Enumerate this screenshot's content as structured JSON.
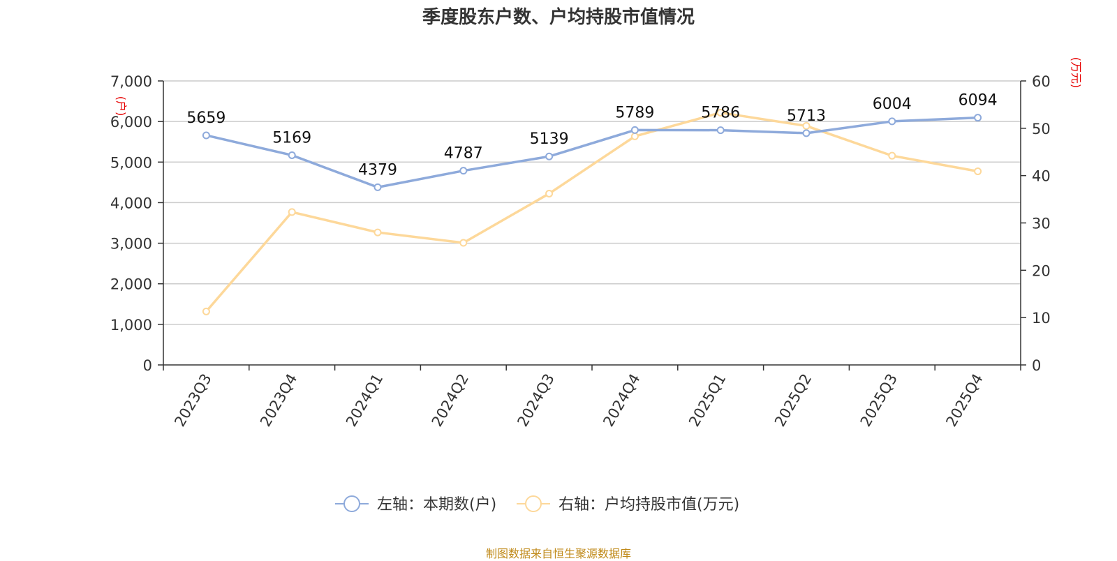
{
  "title": "季度股东户数、户均持股市值情况",
  "source": "制图数据来自恒生聚源数据库",
  "chart_data": {
    "type": "line",
    "categories": [
      "2023Q3",
      "2023Q4",
      "2024Q1",
      "2024Q2",
      "2024Q3",
      "2024Q4",
      "2025Q1",
      "2025Q2",
      "2025Q3",
      "2025Q4"
    ],
    "left_axis": {
      "unit": "(户)",
      "ylim": [
        0,
        7000
      ],
      "ticks": [
        0,
        1000,
        2000,
        3000,
        4000,
        5000,
        6000,
        7000
      ],
      "tick_labels": [
        "0",
        "1,000",
        "2,000",
        "3,000",
        "4,000",
        "5,000",
        "6,000",
        "7,000"
      ]
    },
    "right_axis": {
      "unit": "(万元)",
      "ylim": [
        0,
        60
      ],
      "ticks": [
        0,
        10,
        20,
        30,
        40,
        50,
        60
      ],
      "tick_labels": [
        "0",
        "10",
        "20",
        "30",
        "40",
        "50",
        "60"
      ]
    },
    "series": [
      {
        "name": "左轴：本期数(户)",
        "axis": "left",
        "color": "#8eaadb",
        "values": [
          5659,
          5169,
          4379,
          4787,
          5139,
          5789,
          5786,
          5713,
          6004,
          6094
        ],
        "labels": [
          "5659",
          "5169",
          "4379",
          "4787",
          "5139",
          "5789",
          "5786",
          "5713",
          "6004",
          "6094"
        ]
      },
      {
        "name": "右轴：户均持股市值(万元)",
        "axis": "right",
        "color": "#fdd89a",
        "values": [
          11.3,
          32.3,
          28.0,
          25.8,
          36.2,
          48.3,
          53.3,
          50.5,
          44.2,
          40.9
        ]
      }
    ],
    "grid": true,
    "legend": "bottom-center"
  }
}
